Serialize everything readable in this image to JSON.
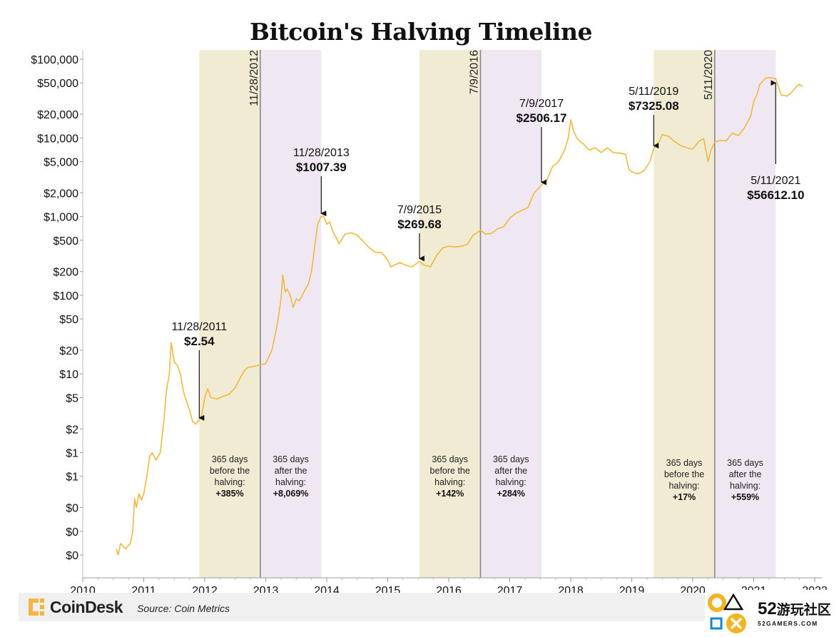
{
  "chart_data": {
    "type": "line",
    "title": "Bitcoin's Halving Timeline",
    "y_scale": "log",
    "y_tick_labels": [
      "$100,000",
      "$50,000",
      "$20,000",
      "$10,000",
      "$5,000",
      "$2,000",
      "$1,000",
      "$500",
      "$200",
      "$100",
      "$50",
      "$20",
      "$10",
      "$5",
      "$2",
      "$1",
      "$1",
      "$0",
      "$0",
      "$0"
    ],
    "y_tick_values": [
      100000,
      50000,
      20000,
      10000,
      5000,
      2000,
      1000,
      500,
      200,
      100,
      50,
      20,
      10,
      5,
      2,
      1,
      0.5,
      0.2,
      0.1,
      0.05
    ],
    "x_tick_labels": [
      "2010",
      "2011",
      "2012",
      "2013",
      "2014",
      "2015",
      "2016",
      "2017",
      "2018",
      "2019",
      "2020",
      "2021",
      "2022"
    ],
    "x_tick_values": [
      2010,
      2011,
      2012,
      2013,
      2014,
      2015,
      2016,
      2017,
      2018,
      2019,
      2020,
      2021,
      2022
    ],
    "xlim": [
      2010,
      2022
    ],
    "ylim": [
      0.035,
      120000
    ],
    "grid": false,
    "series": [
      {
        "color": "#f3b73b",
        "x": [
          2010.55,
          2010.58,
          2010.62,
          2010.7,
          2010.78,
          2010.82,
          2010.85,
          2010.88,
          2010.92,
          2010.96,
          2011.0,
          2011.05,
          2011.1,
          2011.14,
          2011.2,
          2011.27,
          2011.33,
          2011.37,
          2011.42,
          2011.45,
          2011.5,
          2011.55,
          2011.6,
          2011.65,
          2011.7,
          2011.75,
          2011.8,
          2011.85,
          2011.9,
          2011.95,
          2012.0,
          2012.05,
          2012.1,
          2012.15,
          2012.2,
          2012.3,
          2012.4,
          2012.5,
          2012.6,
          2012.65,
          2012.7,
          2012.8,
          2012.9,
          2013.0,
          2013.1,
          2013.15,
          2013.2,
          2013.25,
          2013.28,
          2013.32,
          2013.35,
          2013.4,
          2013.45,
          2013.5,
          2013.55,
          2013.6,
          2013.65,
          2013.7,
          2013.75,
          2013.8,
          2013.85,
          2013.91,
          2013.95,
          2014.0,
          2014.05,
          2014.1,
          2014.15,
          2014.2,
          2014.3,
          2014.4,
          2014.5,
          2014.6,
          2014.7,
          2014.8,
          2014.9,
          2015.0,
          2015.05,
          2015.1,
          2015.2,
          2015.3,
          2015.4,
          2015.52,
          2015.6,
          2015.7,
          2015.8,
          2015.9,
          2016.0,
          2016.1,
          2016.2,
          2016.3,
          2016.4,
          2016.5,
          2016.52,
          2016.6,
          2016.7,
          2016.8,
          2016.9,
          2017.0,
          2017.1,
          2017.2,
          2017.3,
          2017.4,
          2017.52,
          2017.6,
          2017.7,
          2017.8,
          2017.9,
          2017.96,
          2018.0,
          2018.05,
          2018.1,
          2018.15,
          2018.2,
          2018.3,
          2018.4,
          2018.5,
          2018.6,
          2018.7,
          2018.8,
          2018.9,
          2018.95,
          2019.0,
          2019.1,
          2019.2,
          2019.3,
          2019.36,
          2019.45,
          2019.5,
          2019.6,
          2019.7,
          2019.8,
          2019.9,
          2020.0,
          2020.1,
          2020.18,
          2020.25,
          2020.3,
          2020.36,
          2020.45,
          2020.55,
          2020.65,
          2020.75,
          2020.85,
          2020.95,
          2021.0,
          2021.05,
          2021.1,
          2021.2,
          2021.3,
          2021.36,
          2021.45,
          2021.55,
          2021.65,
          2021.7,
          2021.75,
          2021.8
        ],
        "values": [
          0.06,
          0.05,
          0.07,
          0.06,
          0.07,
          0.1,
          0.26,
          0.2,
          0.3,
          0.25,
          0.3,
          0.5,
          0.9,
          1.0,
          0.8,
          1.0,
          2.5,
          6.0,
          10.0,
          25.0,
          14.0,
          13.0,
          10.0,
          6.0,
          4.5,
          3.5,
          2.5,
          2.3,
          2.54,
          3.0,
          5.0,
          6.5,
          5.0,
          4.9,
          4.8,
          5.2,
          5.5,
          6.7,
          9.5,
          11.0,
          12.0,
          12.5,
          13.0,
          13.5,
          20.0,
          30.0,
          48.0,
          90.0,
          180.0,
          110.0,
          120.0,
          100.0,
          70.0,
          90.0,
          85.0,
          100.0,
          120.0,
          140.0,
          200.0,
          400.0,
          800.0,
          1007.39,
          1000.0,
          800.0,
          850.0,
          650.0,
          550.0,
          450.0,
          600.0,
          620.0,
          580.0,
          480.0,
          400.0,
          350.0,
          350.0,
          280.0,
          230.0,
          240.0,
          260.0,
          240.0,
          230.0,
          269.68,
          240.0,
          230.0,
          320.0,
          400.0,
          420.0,
          410.0,
          420.0,
          440.0,
          580.0,
          650.0,
          670.0,
          600.0,
          610.0,
          700.0,
          740.0,
          960.0,
          1100.0,
          1200.0,
          1300.0,
          2000.0,
          2506.17,
          2800.0,
          4300.0,
          5000.0,
          7000.0,
          10000.0,
          17000.0,
          12000.0,
          10000.0,
          9000.0,
          8500.0,
          7000.0,
          7500.0,
          6500.0,
          7500.0,
          6500.0,
          6400.0,
          6200.0,
          4000.0,
          3700.0,
          3500.0,
          3800.0,
          5000.0,
          7325.08,
          9000.0,
          11000.0,
          10500.0,
          9000.0,
          8000.0,
          7500.0,
          7200.0,
          9000.0,
          9800.0,
          5000.0,
          7000.0,
          8800.0,
          9300.0,
          9200.0,
          11500.0,
          10700.0,
          13500.0,
          19000.0,
          29000.0,
          35000.0,
          48000.0,
          58000.0,
          58000.0,
          56612.1,
          35000.0,
          34000.0,
          40000.0,
          45000.0,
          48000.0,
          45000.0
        ]
      }
    ],
    "halvings": [
      {
        "label": "11/28/2012",
        "x": 2012.91
      },
      {
        "label": "7/9/2016",
        "x": 2016.52
      },
      {
        "label": "5/11/2020",
        "x": 2020.36
      }
    ],
    "bands": [
      {
        "x0": 2011.91,
        "x1": 2012.91,
        "color": "#f1ebd4",
        "note": [
          "365 days",
          "before the",
          "halving:"
        ],
        "value": "+385%"
      },
      {
        "x0": 2012.91,
        "x1": 2013.91,
        "color": "#efe8f3",
        "note": [
          "365 days",
          "after the",
          "halving:"
        ],
        "value": "+8,069%"
      },
      {
        "x0": 2015.52,
        "x1": 2016.52,
        "color": "#f1ebd4",
        "note": [
          "365 days",
          "before the",
          "halving:"
        ],
        "value": "+142%"
      },
      {
        "x0": 2016.52,
        "x1": 2017.52,
        "color": "#efe8f3",
        "note": [
          "365 days",
          "after the",
          "halving:"
        ],
        "value": "+284%"
      },
      {
        "x0": 2019.36,
        "x1": 2020.36,
        "color": "#f1ebd4",
        "note": [
          "365 days",
          "before the",
          "halving:"
        ],
        "value": "+17%"
      },
      {
        "x0": 2020.36,
        "x1": 2021.36,
        "color": "#efe8f3",
        "note": [
          "365 days",
          "after the",
          "halving:"
        ],
        "value": "+559%"
      }
    ],
    "annotations": [
      {
        "date": "11/28/2011",
        "price": "$2.54",
        "x": 2011.91,
        "y": 2.54
      },
      {
        "date": "11/28/2013",
        "price": "$1007.39",
        "x": 2013.91,
        "y": 1007.39
      },
      {
        "date": "7/9/2015",
        "price": "$269.68",
        "x": 2015.52,
        "y": 269.68
      },
      {
        "date": "7/9/2017",
        "price": "$2506.17",
        "x": 2017.52,
        "y": 2506.17
      },
      {
        "date": "5/11/2019",
        "price": "$7325.08",
        "x": 2019.36,
        "y": 7325.08
      },
      {
        "date": "5/11/2021",
        "price": "$56612.10",
        "x": 2021.36,
        "y": 56612.1
      }
    ]
  },
  "footer": {
    "brand": "CoinDesk",
    "source": "Source: Coin Metrics"
  },
  "watermark": {
    "number": "52",
    "chinese": "游玩社区",
    "url": "52GAMERS.COM"
  },
  "colors": {
    "line": "#f3b73b",
    "band_before": "#f1ebd4",
    "band_after": "#efe8f3",
    "logo": "#f4b63f",
    "watermark_orange": "#f5b41f",
    "watermark_blue": "#1b87c8"
  }
}
